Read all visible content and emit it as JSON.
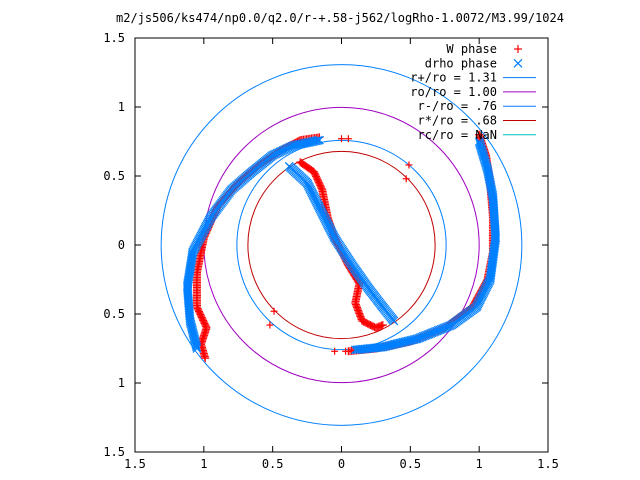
{
  "chart_data": {
    "type": "scatter",
    "title": "m2/js506/ks474/np0.0/q2.0/r-+.58-j562/logRho-1.0072/M3.99/1024",
    "xlabel": "",
    "ylabel": "",
    "xlim": [
      -1.5,
      1.5
    ],
    "ylim": [
      -1.5,
      1.5
    ],
    "x_ticks": [
      -1.5,
      -1,
      -0.5,
      0,
      0.5,
      1,
      1.5
    ],
    "y_ticks": [
      -1.5,
      -1,
      -0.5,
      0,
      0.5,
      1,
      1.5
    ],
    "x_tick_labels": [
      "1.5",
      "1",
      "0.5",
      "0",
      "0.5",
      "1",
      "1.5"
    ],
    "y_tick_labels": [
      "1.5",
      "1",
      "0.5",
      "0",
      "0.5",
      "1",
      "1.5"
    ],
    "grid": false,
    "legend_position": "top-right",
    "series": [
      {
        "name": "W phase",
        "kind": "points",
        "marker": "plus",
        "color": "#ff0000",
        "arms": [
          [
            [
              -0.16,
              0.78
            ],
            [
              -0.3,
              0.76
            ],
            [
              -0.45,
              0.68
            ],
            [
              -0.6,
              0.58
            ],
            [
              -0.75,
              0.45
            ],
            [
              -0.9,
              0.28
            ],
            [
              -1.0,
              0.05
            ],
            [
              -1.05,
              -0.2
            ],
            [
              -1.05,
              -0.45
            ],
            [
              -0.98,
              -0.6
            ],
            [
              -1.02,
              -0.72
            ],
            [
              -0.99,
              -0.82
            ]
          ],
          [
            [
              1.0,
              0.8
            ],
            [
              1.05,
              0.65
            ],
            [
              1.08,
              0.45
            ],
            [
              1.1,
              0.2
            ],
            [
              1.1,
              -0.05
            ],
            [
              1.06,
              -0.25
            ],
            [
              0.95,
              -0.45
            ],
            [
              0.75,
              -0.6
            ],
            [
              0.5,
              -0.7
            ],
            [
              0.25,
              -0.75
            ],
            [
              0.05,
              -0.77
            ]
          ],
          [
            [
              -0.3,
              0.6
            ],
            [
              -0.2,
              0.53
            ],
            [
              -0.14,
              0.4
            ],
            [
              -0.1,
              0.2
            ],
            [
              -0.05,
              0.05
            ],
            [
              0.05,
              -0.15
            ],
            [
              0.13,
              -0.28
            ],
            [
              0.1,
              -0.42
            ],
            [
              0.15,
              -0.55
            ],
            [
              0.25,
              -0.6
            ],
            [
              0.3,
              -0.58
            ]
          ]
        ],
        "isolated": [
          [
            0.0,
            0.77
          ],
          [
            0.05,
            0.77
          ],
          [
            0.49,
            0.58
          ],
          [
            0.47,
            0.48
          ],
          [
            -0.49,
            -0.48
          ],
          [
            -0.52,
            -0.58
          ],
          [
            -0.05,
            -0.77
          ],
          [
            0.03,
            -0.77
          ]
        ]
      },
      {
        "name": "drho phase",
        "kind": "points",
        "marker": "cross",
        "color": "#0080ff",
        "arms": [
          [
            [
              -0.16,
              0.76
            ],
            [
              -0.35,
              0.72
            ],
            [
              -0.5,
              0.65
            ],
            [
              -0.65,
              0.53
            ],
            [
              -0.8,
              0.4
            ],
            [
              -0.95,
              0.2
            ],
            [
              -1.08,
              -0.05
            ],
            [
              -1.12,
              -0.3
            ],
            [
              -1.1,
              -0.55
            ],
            [
              -1.05,
              -0.75
            ]
          ],
          [
            [
              1.0,
              0.75
            ],
            [
              1.06,
              0.55
            ],
            [
              1.1,
              0.35
            ],
            [
              1.12,
              0.05
            ],
            [
              1.08,
              -0.25
            ],
            [
              0.98,
              -0.45
            ],
            [
              0.8,
              -0.58
            ],
            [
              0.55,
              -0.68
            ],
            [
              0.3,
              -0.74
            ],
            [
              0.1,
              -0.76
            ]
          ],
          [
            [
              -0.38,
              0.57
            ],
            [
              -0.25,
              0.45
            ],
            [
              -0.15,
              0.25
            ],
            [
              -0.05,
              0.05
            ],
            [
              0.08,
              -0.15
            ],
            [
              0.2,
              -0.32
            ],
            [
              0.3,
              -0.45
            ],
            [
              0.38,
              -0.55
            ]
          ]
        ],
        "isolated": []
      },
      {
        "name": "r+/ro = 1.31",
        "kind": "circle",
        "radius": 1.31,
        "color": "#0080ff"
      },
      {
        "name": "ro/ro = 1.00",
        "kind": "circle",
        "radius": 1.0,
        "color": "#a000c0"
      },
      {
        "name": "r-/ro = .76",
        "kind": "circle",
        "radius": 0.76,
        "color": "#0080ff"
      },
      {
        "name": "r*/ro = .68",
        "kind": "circle",
        "radius": 0.68,
        "color": "#c00000"
      },
      {
        "name": "rc/ro = NaN",
        "kind": "circle",
        "radius": null,
        "color": "#00c0c0"
      }
    ]
  }
}
